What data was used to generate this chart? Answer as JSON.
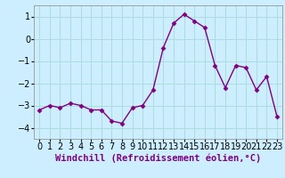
{
  "x": [
    0,
    1,
    2,
    3,
    4,
    5,
    6,
    7,
    8,
    9,
    10,
    11,
    12,
    13,
    14,
    15,
    16,
    17,
    18,
    19,
    20,
    21,
    22,
    23
  ],
  "y": [
    -3.2,
    -3.0,
    -3.1,
    -2.9,
    -3.0,
    -3.2,
    -3.2,
    -3.7,
    -3.8,
    -3.1,
    -3.0,
    -2.3,
    -0.4,
    0.7,
    1.1,
    0.8,
    0.5,
    -1.2,
    -2.2,
    -1.2,
    -1.3,
    -2.3,
    -1.7,
    -3.5
  ],
  "line_color": "#800080",
  "marker": "D",
  "marker_size": 2.5,
  "bg_color": "#cceeff",
  "grid_color": "#aadddd",
  "xlabel": "Windchill (Refroidissement éolien,°C)",
  "xlabel_fontsize": 7.5,
  "tick_fontsize": 7,
  "ylim": [
    -4.5,
    1.5
  ],
  "xlim": [
    -0.5,
    23.5
  ],
  "yticks": [
    -4,
    -3,
    -2,
    -1,
    0,
    1
  ],
  "xticks": [
    0,
    1,
    2,
    3,
    4,
    5,
    6,
    7,
    8,
    9,
    10,
    11,
    12,
    13,
    14,
    15,
    16,
    17,
    18,
    19,
    20,
    21,
    22,
    23
  ]
}
